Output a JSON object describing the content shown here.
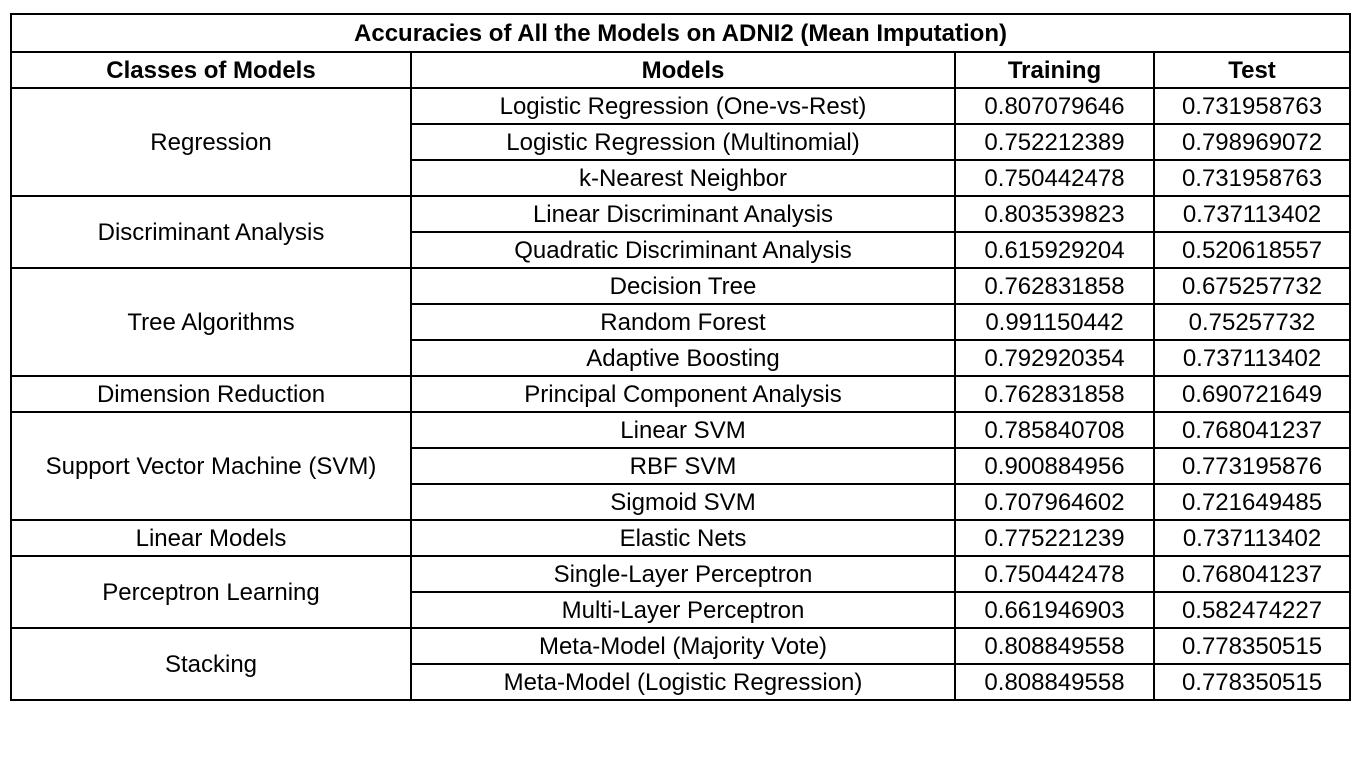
{
  "table": {
    "title": "Accuracies of All the Models on ADNI2 (Mean Imputation)",
    "headers": [
      "Classes of Models",
      "Models",
      "Training",
      "Test"
    ],
    "groups": [
      {
        "class": "Regression",
        "rows": [
          {
            "model": "Logistic Regression (One-vs-Rest)",
            "training": "0.807079646",
            "test": "0.731958763"
          },
          {
            "model": "Logistic Regression (Multinomial)",
            "training": "0.752212389",
            "test": "0.798969072"
          },
          {
            "model": "k-Nearest Neighbor",
            "training": "0.750442478",
            "test": "0.731958763"
          }
        ]
      },
      {
        "class": "Discriminant Analysis",
        "rows": [
          {
            "model": "Linear Discriminant Analysis",
            "training": "0.803539823",
            "test": "0.737113402"
          },
          {
            "model": "Quadratic Discriminant Analysis",
            "training": "0.615929204",
            "test": "0.520618557"
          }
        ]
      },
      {
        "class": "Tree Algorithms",
        "rows": [
          {
            "model": "Decision Tree",
            "training": "0.762831858",
            "test": "0.675257732"
          },
          {
            "model": "Random Forest",
            "training": "0.991150442",
            "test": "0.75257732"
          },
          {
            "model": "Adaptive Boosting",
            "training": "0.792920354",
            "test": "0.737113402"
          }
        ]
      },
      {
        "class": "Dimension Reduction",
        "rows": [
          {
            "model": "Principal Component Analysis",
            "training": "0.762831858",
            "test": "0.690721649"
          }
        ]
      },
      {
        "class": "Support Vector Machine (SVM)",
        "rows": [
          {
            "model": "Linear SVM",
            "training": "0.785840708",
            "test": "0.768041237"
          },
          {
            "model": "RBF SVM",
            "training": "0.900884956",
            "test": "0.773195876"
          },
          {
            "model": "Sigmoid SVM",
            "training": "0.707964602",
            "test": "0.721649485"
          }
        ]
      },
      {
        "class": "Linear Models",
        "rows": [
          {
            "model": "Elastic Nets",
            "training": "0.775221239",
            "test": "0.737113402"
          }
        ]
      },
      {
        "class": "Perceptron Learning",
        "rows": [
          {
            "model": "Single-Layer Perceptron",
            "training": "0.750442478",
            "test": "0.768041237"
          },
          {
            "model": "Multi-Layer Perceptron",
            "training": "0.661946903",
            "test": "0.582474227"
          }
        ]
      },
      {
        "class": "Stacking",
        "rows": [
          {
            "model": "Meta-Model (Majority Vote)",
            "training": "0.808849558",
            "test": "0.778350515"
          },
          {
            "model": "Meta-Model (Logistic Regression)",
            "training": "0.808849558",
            "test": "0.778350515"
          }
        ]
      }
    ]
  }
}
